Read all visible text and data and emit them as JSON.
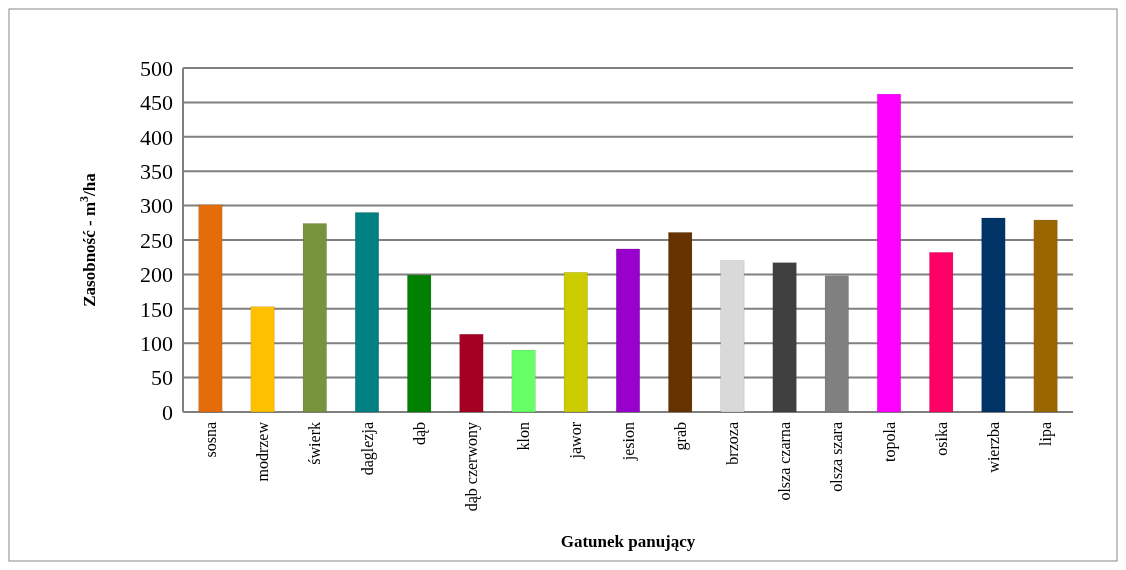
{
  "chart_data": {
    "type": "bar",
    "xlabel": "Gatunek panujący",
    "ylabel": "Zasobność - m$^{3}$/ha",
    "categories": [
      "sosna",
      "modrzew",
      "świerk",
      "daglezja",
      "dąb",
      "dąb czerwony",
      "klon",
      "jawor",
      "jesion",
      "grab",
      "brzoza",
      "olsza czarna",
      "olsza szara",
      "topola",
      "osika",
      "wierzba",
      "lipa"
    ],
    "values": [
      301,
      153,
      274,
      290,
      199,
      113,
      90,
      203,
      237,
      261,
      220,
      217,
      198,
      462,
      232,
      282,
      279
    ],
    "colors": [
      "#e46c0a",
      "#ffc000",
      "#77933c",
      "#008080",
      "#008000",
      "#a50021",
      "#66ff66",
      "#cccc00",
      "#9900cc",
      "#663300",
      "#d9d9d9",
      "#404040",
      "#808080",
      "#ff00ff",
      "#ff0066",
      "#003366",
      "#996600"
    ],
    "ylim": [
      0,
      500
    ],
    "yticks": [
      0,
      50,
      100,
      150,
      200,
      250,
      300,
      350,
      400,
      450,
      500
    ],
    "grid": "y"
  }
}
